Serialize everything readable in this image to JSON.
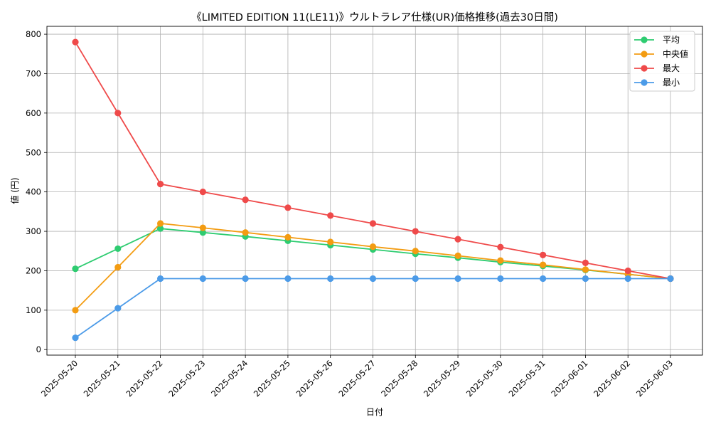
{
  "chart_data": {
    "type": "line",
    "title": "《LIMITED EDITION 11(LE11)》ウルトラレア仕様(UR)価格推移(過去30日間)",
    "xlabel": "日付",
    "ylabel": "値 (円)",
    "categories": [
      "2025-05-20",
      "2025-05-21",
      "2025-05-22",
      "2025-05-23",
      "2025-05-24",
      "2025-05-25",
      "2025-05-26",
      "2025-05-27",
      "2025-05-28",
      "2025-05-29",
      "2025-05-30",
      "2025-05-31",
      "2025-06-01",
      "2025-06-02",
      "2025-06-03"
    ],
    "ylim": [
      -14,
      820
    ],
    "yticks": [
      0,
      100,
      200,
      300,
      400,
      500,
      600,
      700,
      800
    ],
    "grid": true,
    "legend_position": "top-right",
    "series": [
      {
        "name": "平均",
        "color": "#2ecc71",
        "values": [
          205,
          256,
          307,
          297,
          287,
          276,
          265,
          254,
          243,
          233,
          222,
          212,
          202,
          191,
          180
        ]
      },
      {
        "name": "中央値",
        "color": "#f39c12",
        "values": [
          100,
          209,
          320,
          309,
          297,
          285,
          273,
          261,
          250,
          238,
          226,
          215,
          203,
          191,
          180
        ]
      },
      {
        "name": "最大",
        "color": "#ef4a4a",
        "values": [
          780,
          600,
          420,
          400,
          380,
          360,
          340,
          320,
          300,
          280,
          260,
          240,
          220,
          200,
          180
        ]
      },
      {
        "name": "最小",
        "color": "#4c9be8",
        "values": [
          30,
          105,
          180,
          180,
          180,
          180,
          180,
          180,
          180,
          180,
          180,
          180,
          180,
          180,
          180
        ]
      }
    ]
  }
}
